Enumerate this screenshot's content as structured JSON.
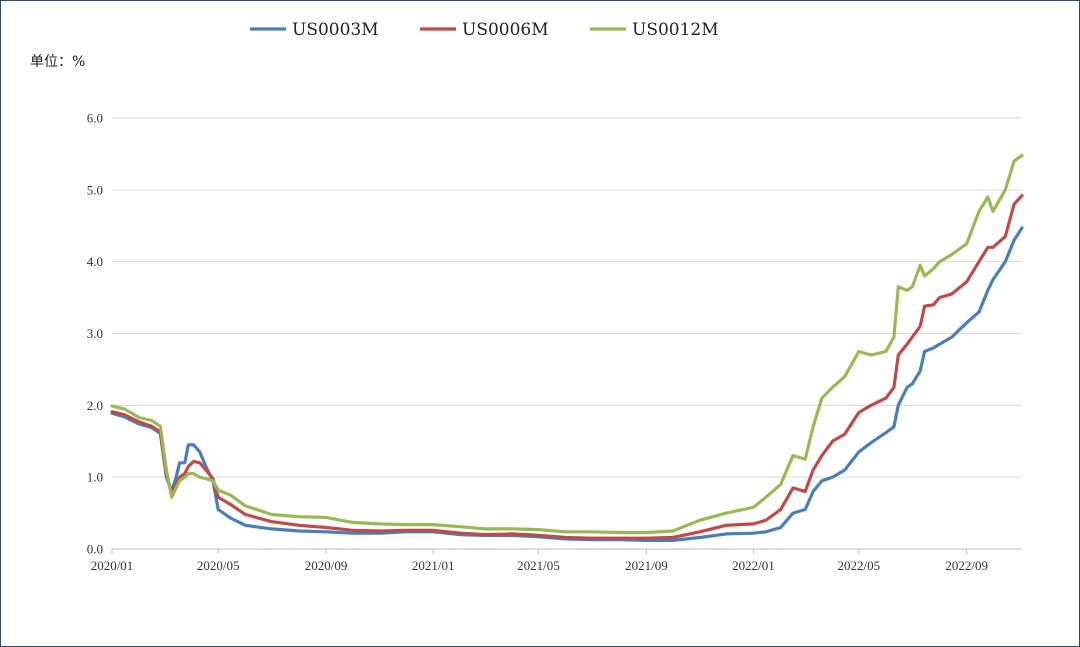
{
  "chart_data": {
    "type": "line",
    "unit_label": "单位：%",
    "y_ticks": [
      "0.0",
      "1.0",
      "2.0",
      "3.0",
      "4.0",
      "5.0",
      "6.0"
    ],
    "ylim": [
      0,
      6
    ],
    "x_ticks": [
      "2020/01",
      "2020/05",
      "2020/09",
      "2021/01",
      "2021/05",
      "2021/09",
      "2022/01",
      "2022/05",
      "2022/09"
    ],
    "xlim": [
      "2020-01-01",
      "2022-11-03"
    ],
    "grid": "horizontal",
    "legend_position": "top",
    "series": [
      {
        "name": "US0003M",
        "color": "#4a7ebb",
        "x": [
          "2020-01-01",
          "2020-01-15",
          "2020-02-01",
          "2020-02-15",
          "2020-02-25",
          "2020-03-03",
          "2020-03-09",
          "2020-03-14",
          "2020-03-18",
          "2020-03-24",
          "2020-03-28",
          "2020-04-03",
          "2020-04-10",
          "2020-04-17",
          "2020-04-25",
          "2020-05-01",
          "2020-05-15",
          "2020-06-01",
          "2020-07-01",
          "2020-08-01",
          "2020-09-01",
          "2020-10-01",
          "2020-11-01",
          "2020-12-01",
          "2021-01-01",
          "2021-02-01",
          "2021-03-01",
          "2021-04-01",
          "2021-05-01",
          "2021-06-01",
          "2021-07-01",
          "2021-08-01",
          "2021-09-01",
          "2021-10-01",
          "2021-11-01",
          "2021-12-01",
          "2022-01-01",
          "2022-01-15",
          "2022-02-01",
          "2022-02-15",
          "2022-03-01",
          "2022-03-10",
          "2022-03-20",
          "2022-04-01",
          "2022-04-15",
          "2022-05-01",
          "2022-05-15",
          "2022-06-01",
          "2022-06-10",
          "2022-06-15",
          "2022-06-25",
          "2022-07-01",
          "2022-07-10",
          "2022-07-15",
          "2022-07-25",
          "2022-08-01",
          "2022-08-15",
          "2022-09-01",
          "2022-09-15",
          "2022-09-25",
          "2022-10-01",
          "2022-10-15",
          "2022-10-25",
          "2022-11-03"
        ],
        "values": [
          1.89,
          1.84,
          1.74,
          1.69,
          1.61,
          1.0,
          0.8,
          1.0,
          1.2,
          1.2,
          1.45,
          1.45,
          1.35,
          1.15,
          0.95,
          0.55,
          0.43,
          0.33,
          0.28,
          0.25,
          0.24,
          0.22,
          0.22,
          0.24,
          0.24,
          0.2,
          0.19,
          0.19,
          0.17,
          0.14,
          0.13,
          0.13,
          0.12,
          0.12,
          0.16,
          0.21,
          0.22,
          0.24,
          0.3,
          0.5,
          0.55,
          0.8,
          0.95,
          1.0,
          1.1,
          1.35,
          1.48,
          1.62,
          1.7,
          2.0,
          2.25,
          2.3,
          2.48,
          2.75,
          2.8,
          2.85,
          2.95,
          3.15,
          3.3,
          3.6,
          3.75,
          4.0,
          4.3,
          4.47
        ]
      },
      {
        "name": "US0006M",
        "color": "#be4b48",
        "x": [
          "2020-01-01",
          "2020-01-15",
          "2020-02-01",
          "2020-02-15",
          "2020-02-25",
          "2020-03-03",
          "2020-03-09",
          "2020-03-14",
          "2020-03-18",
          "2020-03-24",
          "2020-03-28",
          "2020-04-03",
          "2020-04-10",
          "2020-04-17",
          "2020-04-25",
          "2020-05-01",
          "2020-05-15",
          "2020-06-01",
          "2020-07-01",
          "2020-08-01",
          "2020-09-01",
          "2020-10-01",
          "2020-11-01",
          "2020-12-01",
          "2021-01-01",
          "2021-02-01",
          "2021-03-01",
          "2021-04-01",
          "2021-05-01",
          "2021-06-01",
          "2021-07-01",
          "2021-08-01",
          "2021-09-01",
          "2021-10-01",
          "2021-11-01",
          "2021-12-01",
          "2022-01-01",
          "2022-01-15",
          "2022-02-01",
          "2022-02-15",
          "2022-03-01",
          "2022-03-10",
          "2022-03-20",
          "2022-04-01",
          "2022-04-15",
          "2022-05-01",
          "2022-05-15",
          "2022-06-01",
          "2022-06-10",
          "2022-06-15",
          "2022-06-25",
          "2022-07-01",
          "2022-07-10",
          "2022-07-15",
          "2022-07-25",
          "2022-08-01",
          "2022-08-15",
          "2022-09-01",
          "2022-09-15",
          "2022-09-25",
          "2022-10-01",
          "2022-10-15",
          "2022-10-25",
          "2022-11-03"
        ],
        "values": [
          1.91,
          1.87,
          1.77,
          1.71,
          1.63,
          1.05,
          0.78,
          0.9,
          1.0,
          1.05,
          1.15,
          1.22,
          1.2,
          1.1,
          0.98,
          0.72,
          0.62,
          0.48,
          0.38,
          0.33,
          0.3,
          0.26,
          0.25,
          0.26,
          0.26,
          0.22,
          0.2,
          0.21,
          0.19,
          0.16,
          0.15,
          0.15,
          0.15,
          0.16,
          0.24,
          0.33,
          0.35,
          0.4,
          0.55,
          0.85,
          0.8,
          1.1,
          1.3,
          1.5,
          1.6,
          1.9,
          2.0,
          2.1,
          2.25,
          2.7,
          2.85,
          2.95,
          3.1,
          3.38,
          3.4,
          3.5,
          3.55,
          3.72,
          4.0,
          4.2,
          4.2,
          4.35,
          4.8,
          4.92
        ]
      },
      {
        "name": "US0012M",
        "color": "#98b954",
        "x": [
          "2020-01-01",
          "2020-01-15",
          "2020-02-01",
          "2020-02-15",
          "2020-02-25",
          "2020-03-03",
          "2020-03-09",
          "2020-03-14",
          "2020-03-18",
          "2020-03-24",
          "2020-03-28",
          "2020-04-03",
          "2020-04-10",
          "2020-04-17",
          "2020-04-25",
          "2020-05-01",
          "2020-05-15",
          "2020-06-01",
          "2020-07-01",
          "2020-08-01",
          "2020-09-01",
          "2020-10-01",
          "2020-11-01",
          "2020-12-01",
          "2021-01-01",
          "2021-02-01",
          "2021-03-01",
          "2021-04-01",
          "2021-05-01",
          "2021-06-01",
          "2021-07-01",
          "2021-08-01",
          "2021-09-01",
          "2021-10-01",
          "2021-11-01",
          "2021-12-01",
          "2022-01-01",
          "2022-01-15",
          "2022-02-01",
          "2022-02-15",
          "2022-03-01",
          "2022-03-10",
          "2022-03-20",
          "2022-04-01",
          "2022-04-15",
          "2022-05-01",
          "2022-05-15",
          "2022-06-01",
          "2022-06-10",
          "2022-06-15",
          "2022-06-25",
          "2022-07-01",
          "2022-07-10",
          "2022-07-15",
          "2022-07-25",
          "2022-08-01",
          "2022-08-15",
          "2022-09-01",
          "2022-09-15",
          "2022-09-25",
          "2022-10-01",
          "2022-10-15",
          "2022-10-25",
          "2022-11-03"
        ],
        "values": [
          1.99,
          1.95,
          1.83,
          1.79,
          1.71,
          1.1,
          0.72,
          0.85,
          0.95,
          1.0,
          1.05,
          1.05,
          1.0,
          0.98,
          0.95,
          0.82,
          0.75,
          0.6,
          0.48,
          0.45,
          0.44,
          0.37,
          0.35,
          0.34,
          0.34,
          0.31,
          0.28,
          0.28,
          0.27,
          0.24,
          0.24,
          0.23,
          0.23,
          0.25,
          0.4,
          0.5,
          0.58,
          0.72,
          0.9,
          1.3,
          1.25,
          1.7,
          2.1,
          2.25,
          2.4,
          2.75,
          2.7,
          2.75,
          2.95,
          3.65,
          3.6,
          3.65,
          3.95,
          3.8,
          3.9,
          4.0,
          4.1,
          4.25,
          4.7,
          4.9,
          4.7,
          5.0,
          5.4,
          5.48
        ]
      }
    ]
  }
}
